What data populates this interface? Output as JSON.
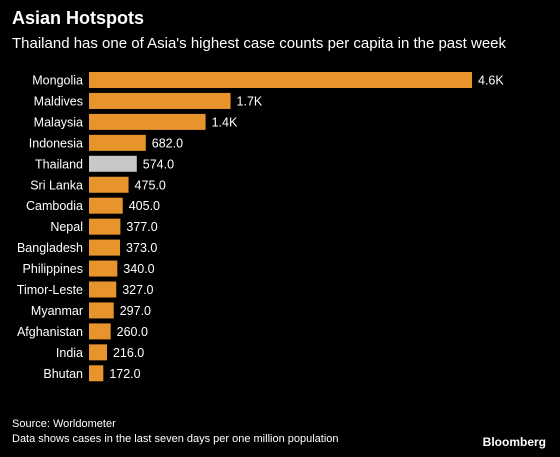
{
  "title": "Asian Hotspots",
  "subtitle": "Thailand has one of Asia's highest case counts per capita in the past week",
  "source": "Source: Worldometer",
  "note": "Data shows cases in the last seven days per one million population",
  "brand": "Bloomberg",
  "colors": {
    "bar": "#e8942c",
    "highlight": "#c8c8c8",
    "background": "#000000",
    "text": "#ffffff"
  },
  "chart_data": {
    "type": "bar",
    "orientation": "horizontal",
    "categories": [
      "Mongolia",
      "Maldives",
      "Malaysia",
      "Indonesia",
      "Thailand",
      "Sri Lanka",
      "Cambodia",
      "Nepal",
      "Bangladesh",
      "Philippines",
      "Timor-Leste",
      "Myanmar",
      "Afghanistan",
      "India",
      "Bhutan"
    ],
    "values": [
      4600,
      1700,
      1400,
      682,
      574,
      475,
      405,
      377,
      373,
      340,
      327,
      297,
      260,
      216,
      172
    ],
    "value_labels": [
      "4.6K",
      "1.7K",
      "1.4K",
      "682.0",
      "574.0",
      "475.0",
      "405.0",
      "377.0",
      "373.0",
      "340.0",
      "327.0",
      "297.0",
      "260.0",
      "216.0",
      "172.0"
    ],
    "highlight": "Thailand",
    "xlim": [
      0,
      4600
    ],
    "grid": false,
    "legend": "none"
  }
}
